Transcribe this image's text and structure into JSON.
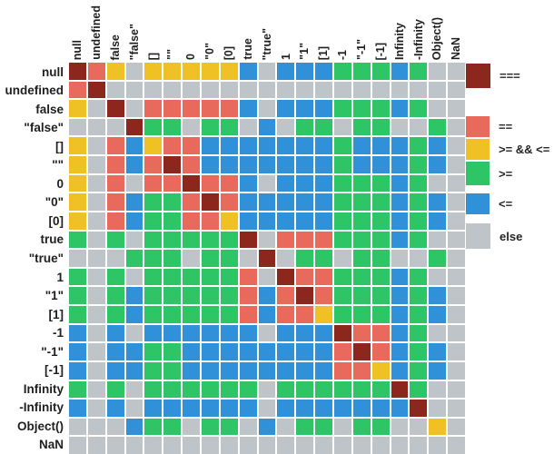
{
  "values": [
    "null",
    "undefined",
    "false",
    "\"false\"",
    "[]",
    "\"\"",
    "0",
    "\"0\"",
    "[0]",
    "true",
    "\"true\"",
    "1",
    "\"1\"",
    "[1]",
    "-1",
    "\"-1\"",
    "[-1]",
    "Infinity",
    "-Infinity",
    "Object()",
    "NaN"
  ],
  "colors": {
    "s": "#8c271e",
    "e": "#e86a5c",
    "b": "#f0c125",
    "g": "#2dc565",
    "l": "#3090d8",
    "x": "#bfc4c8"
  },
  "legend": [
    {
      "label": "===",
      "code": "s",
      "color": "#8c271e"
    },
    {
      "label": "==",
      "code": "e",
      "color": "#e86a5c"
    },
    {
      "label": ">= && <=",
      "code": "b",
      "color": "#f0c125"
    },
    {
      "label": ">=",
      "code": "g",
      "color": "#2dc565"
    },
    {
      "label": "<=",
      "code": "l",
      "color": "#3090d8"
    },
    {
      "label": "else",
      "code": "x",
      "color": "#bfc4c8"
    }
  ],
  "chart_data": {
    "type": "heatmap",
    "rows": [
      "null",
      "undefined",
      "false",
      "\"false\"",
      "[]",
      "\"\"",
      "0",
      "\"0\"",
      "[0]",
      "true",
      "\"true\"",
      "1",
      "\"1\"",
      "[1]",
      "-1",
      "\"-1\"",
      "[-1]",
      "Infinity",
      "-Infinity",
      "Object()",
      "NaN"
    ],
    "columns": [
      "null",
      "undefined",
      "false",
      "\"false\"",
      "[]",
      "\"\"",
      "0",
      "\"0\"",
      "[0]",
      "true",
      "\"true\"",
      "1",
      "\"1\"",
      "[1]",
      "-1",
      "\"-1\"",
      "[-1]",
      "Infinity",
      "-Infinity",
      "Object()",
      "NaN"
    ],
    "code_meaning": {
      "s": "===",
      "e": "==",
      "b": ">= && <=",
      "g": ">=",
      "l": "<=",
      "x": "else"
    },
    "legend_position": "right",
    "matrix": [
      "sebxbbbbblxlllggglgxx",
      "esxxxxxxxxxxxxxxxxxxx",
      "bxsxeeeeelxlllggglgxx",
      "xxxsggxggxlxggxggxxgx",
      "bxelbeelllllllglllglx",
      "bxeleselllllllglllglx",
      "bxexeeseelxlllggglgxx",
      "bxelggeselllllggglglx",
      "bxelggeeblllllggglglx",
      "gxgxgggggsxeeeggglgxx",
      "xxxgggxggxsxggxggxxgx",
      "gxgxgggggexseeggglgxx",
      "gxglgggggeleseggglglx",
      "gxglgggggeleebggglglx",
      "lxlxllllllxlllseelgxx",
      "lxllgglllllllleselglx",
      "lxllgglllllllleeblglx",
      "gxgxggggggxggggggsgxx",
      "lxlxllllllxlllllllsxx",
      "xxxlggxggxlxggxggxxbx",
      "xxxxxxxxxxxxxxxxxxxxx"
    ]
  }
}
